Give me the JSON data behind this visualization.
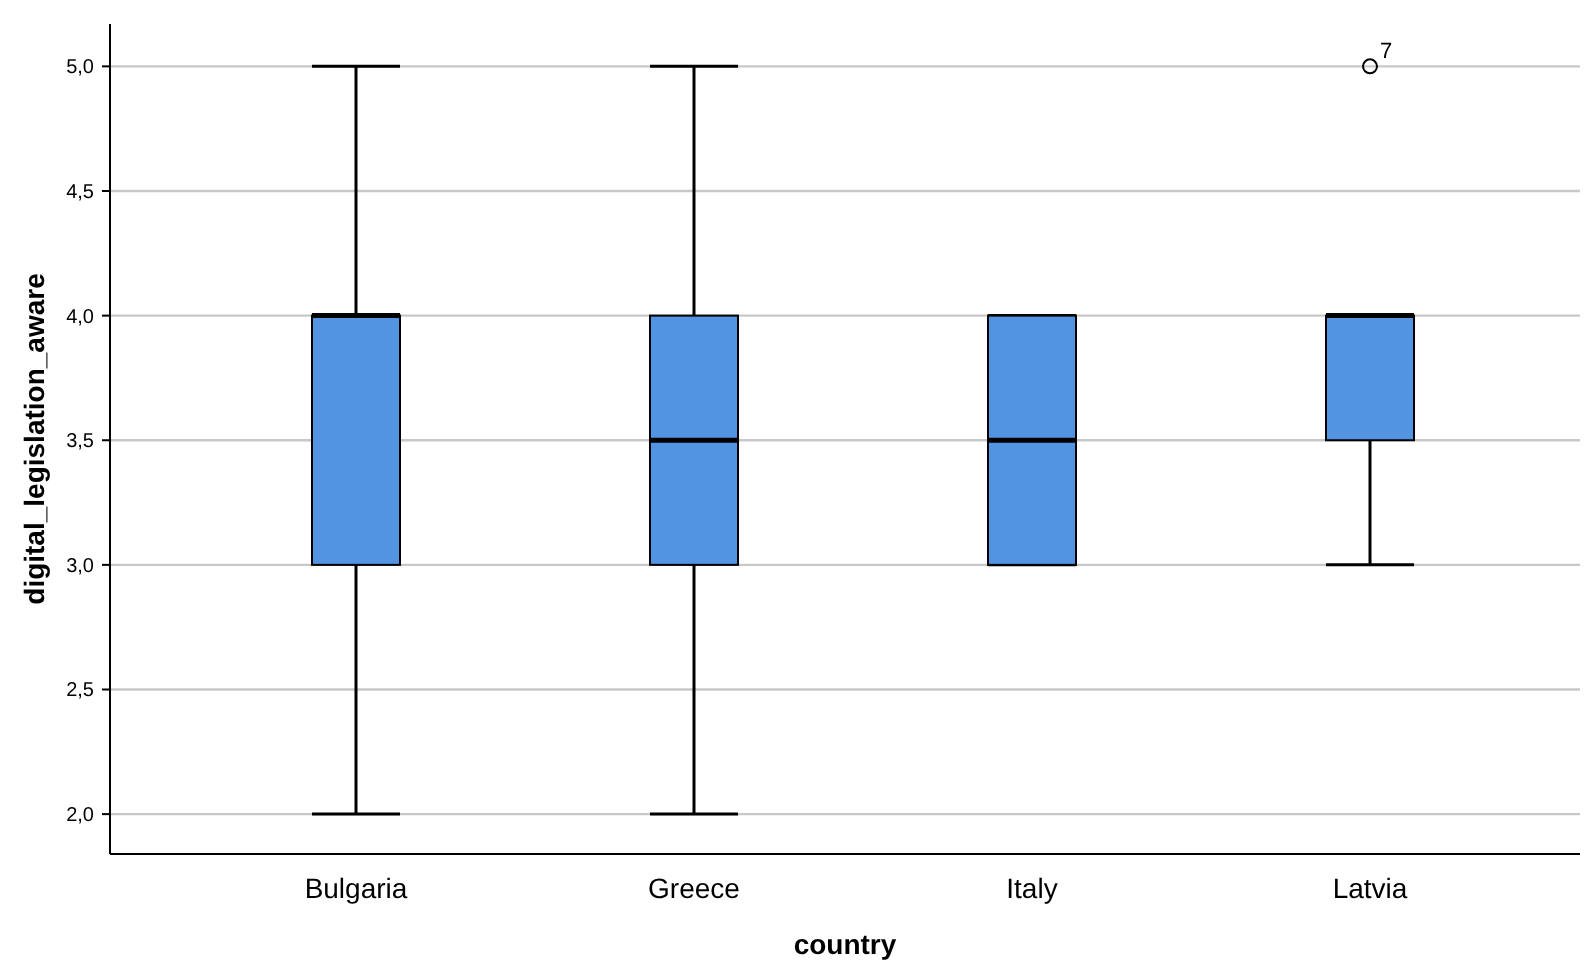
{
  "chart_data": {
    "type": "box",
    "xlabel": "country",
    "ylabel": "digital_legislation_aware",
    "categories": [
      "Bulgaria",
      "Greece",
      "Italy",
      "Latvia"
    ],
    "boxes": [
      {
        "low": 2,
        "q1": 3,
        "median": 4,
        "q3": 4,
        "high": 5
      },
      {
        "low": 2,
        "q1": 3,
        "median": 3.5,
        "q3": 4,
        "high": 5
      },
      {
        "low": 3,
        "q1": 3,
        "median": 3.5,
        "q3": 4,
        "high": 4
      },
      {
        "low": 3,
        "q1": 3.5,
        "median": 4,
        "q3": 4,
        "high": 4,
        "outliers": [
          5
        ]
      }
    ],
    "color": "#5294e2",
    "ylim": [
      1.84,
      5.17
    ],
    "yticks": [
      {
        "value": 2,
        "label": "2,0"
      },
      {
        "value": 2.5,
        "label": "2,5"
      },
      {
        "value": 3,
        "label": "3,0"
      },
      {
        "value": 3.5,
        "label": "3,5"
      },
      {
        "value": 4,
        "label": "4,0"
      },
      {
        "value": 4.5,
        "label": "4,5"
      },
      {
        "value": 5,
        "label": "5,0"
      }
    ],
    "grid": "y",
    "annotations": [
      "7"
    ]
  }
}
